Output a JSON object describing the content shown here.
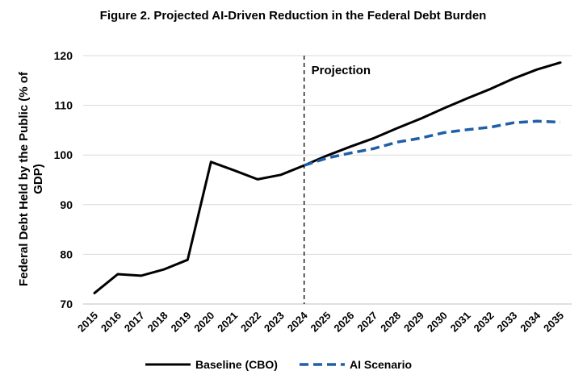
{
  "chart_data": {
    "type": "line",
    "title": "Figure 2. Projected AI-Driven Reduction in the Federal Debt Burden",
    "xlabel": "",
    "ylabel": "Federal Debt Held by the Public (% of GDP)",
    "ylabel_lines": [
      "Federal Debt Held by the Public (% of",
      "GDP)"
    ],
    "ylim": [
      70,
      120
    ],
    "yticks": [
      "70",
      "80",
      "90",
      "100",
      "110",
      "120"
    ],
    "grid": true,
    "legend_position": "bottom",
    "categories": [
      "2015",
      "2016",
      "2017",
      "2018",
      "2019",
      "2020",
      "2021",
      "2022",
      "2023",
      "2024",
      "2025",
      "2026",
      "2027",
      "2028",
      "2029",
      "2030",
      "2031",
      "2032",
      "2033",
      "2034",
      "2035"
    ],
    "annotation": {
      "text": "Projection",
      "at": "2024"
    },
    "series": [
      {
        "name": "Baseline (CBO)",
        "color": "#000000",
        "style": "solid",
        "values": [
          72.2,
          76.0,
          75.7,
          77.0,
          78.9,
          98.6,
          96.9,
          95.1,
          96.0,
          97.9,
          99.9,
          101.7,
          103.4,
          105.4,
          107.3,
          109.4,
          111.4,
          113.3,
          115.4,
          117.2,
          118.6
        ]
      },
      {
        "name": "AI Scenario",
        "color": "#1f5fa6",
        "style": "dashed",
        "start_index": 9,
        "values": [
          null,
          null,
          null,
          null,
          null,
          null,
          null,
          null,
          null,
          97.9,
          99.4,
          100.4,
          101.3,
          102.6,
          103.4,
          104.5,
          105.1,
          105.6,
          106.5,
          106.8,
          106.6
        ]
      }
    ]
  }
}
